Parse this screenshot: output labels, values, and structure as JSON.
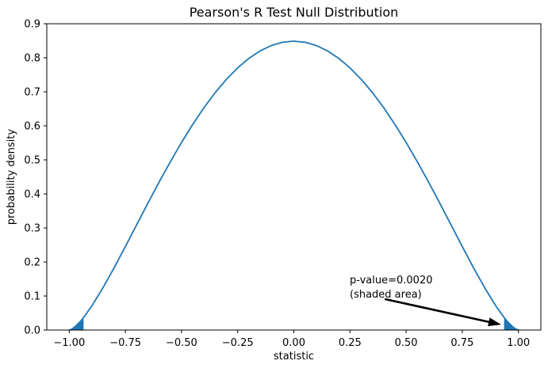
{
  "title": "Pearson's R Test Null Distribution",
  "colors": {
    "curve": "#1f77b4",
    "shaded_area": "#1f77b4",
    "axis": "#000000",
    "arrow": "#000000",
    "background": "#ffffff"
  },
  "chart_data": {
    "type": "line",
    "title": "Pearson's R Test Null Distribution",
    "xlabel": "statistic",
    "ylabel": "probability density",
    "xlim": [
      -1.1,
      1.1
    ],
    "ylim": [
      0,
      0.9
    ],
    "grid": false,
    "legend": "none",
    "x_ticks": {
      "values": [
        -1.0,
        -0.75,
        -0.5,
        -0.25,
        0.0,
        0.25,
        0.5,
        0.75,
        1.0
      ],
      "labels": [
        "−1.00",
        "−0.75",
        "−0.50",
        "−0.25",
        "0.00",
        "0.25",
        "0.50",
        "0.75",
        "1.00"
      ]
    },
    "y_ticks": {
      "values": [
        0.0,
        0.1,
        0.2,
        0.3,
        0.4,
        0.5,
        0.6,
        0.7,
        0.8,
        0.9
      ],
      "labels": [
        "0.0",
        "0.1",
        "0.2",
        "0.3",
        "0.4",
        "0.5",
        "0.6",
        "0.7",
        "0.8",
        "0.9"
      ]
    },
    "series": [
      {
        "name": "null-distribution-pdf",
        "formula": "y = 0.8488 * (1 - x^2)^1.5",
        "x": [
          -1,
          -0.99,
          -0.975,
          -0.95,
          -0.936,
          -0.9,
          -0.85,
          -0.8,
          -0.75,
          -0.7,
          -0.65,
          -0.6,
          -0.55,
          -0.5,
          -0.45,
          -0.4,
          -0.35,
          -0.3,
          -0.25,
          -0.2,
          -0.15,
          -0.1,
          -0.05,
          0,
          0.05,
          0.1,
          0.15,
          0.2,
          0.25,
          0.3,
          0.35,
          0.4,
          0.45,
          0.5,
          0.55,
          0.6,
          0.65,
          0.7,
          0.75,
          0.8,
          0.85,
          0.9,
          0.936,
          0.95,
          0.975,
          0.99,
          1
        ],
        "y": [
          0,
          0.0024,
          0.0093,
          0.0258,
          0.037,
          0.0703,
          0.1241,
          0.1833,
          0.2456,
          0.3091,
          0.3725,
          0.4346,
          0.4945,
          0.5513,
          0.6045,
          0.6535,
          0.6977,
          0.7368,
          0.7705,
          0.7984,
          0.8203,
          0.8361,
          0.8456,
          0.8488,
          0.8456,
          0.8361,
          0.8203,
          0.7984,
          0.7705,
          0.7368,
          0.6977,
          0.6535,
          0.6045,
          0.5513,
          0.4945,
          0.4346,
          0.3725,
          0.3091,
          0.2456,
          0.1833,
          0.1241,
          0.0703,
          0.037,
          0.0258,
          0.0093,
          0.0024,
          0
        ]
      }
    ],
    "shaded_regions": [
      {
        "name": "left-tail",
        "from": -1,
        "to": -0.936
      },
      {
        "name": "right-tail",
        "from": 0.936,
        "to": 1
      }
    ],
    "p_value": 0.002,
    "critical_statistic": 0.936,
    "annotation": {
      "line1": "p-value=0.0020",
      "line2": "(shaded area)",
      "text_xy": [
        0.249,
        0.165
      ],
      "arrow_tail_xy": [
        0.405,
        0.091
      ],
      "arrow_head_xy": [
        0.923,
        0.016
      ]
    }
  }
}
